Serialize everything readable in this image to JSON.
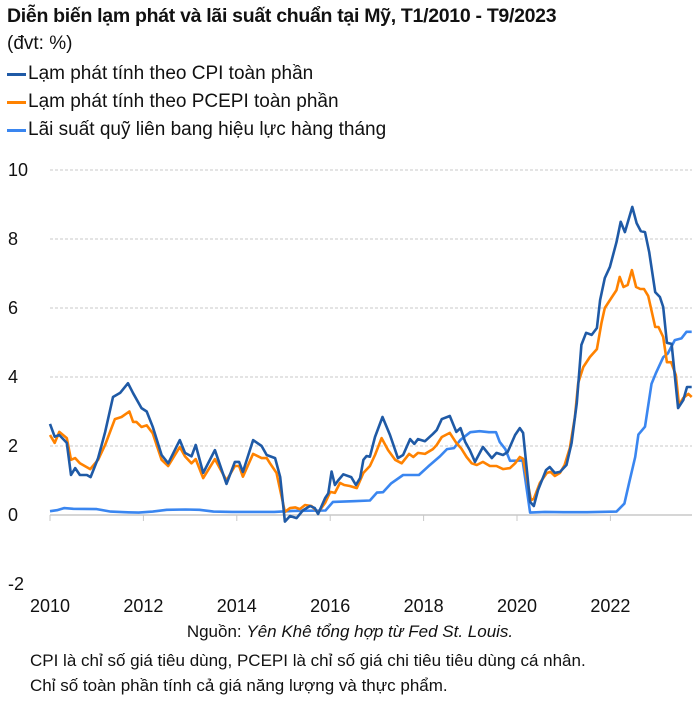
{
  "chart_data": {
    "type": "line",
    "title": "Diễn biến lạm phát và lãi suất chuẩn tại Mỹ, T1/2010 - T9/2023",
    "subtitle": "(đvt: %)",
    "xlabel": "",
    "ylabel": "",
    "xlim": [
      2010,
      2023.75
    ],
    "ylim": [
      -2,
      10
    ],
    "yticks": [
      "10",
      "8",
      "6",
      "4",
      "2",
      "0",
      "-2"
    ],
    "ytick_values": [
      10,
      8,
      6,
      4,
      2,
      0,
      -2
    ],
    "xticks": [
      "2010",
      "2012",
      "2014",
      "2016",
      "2018",
      "2020",
      "2022"
    ],
    "xtick_values": [
      2010,
      2012,
      2014,
      2016,
      2018,
      2020,
      2022
    ],
    "grid": "horizontal dashed",
    "legend_position": "top-left",
    "series": [
      {
        "name": "Lạm phát tính theo CPI toàn phần",
        "color": "#1f5aa6",
        "points": [
          [
            2010.0,
            2.64
          ],
          [
            2010.1,
            2.27
          ],
          [
            2010.2,
            2.32
          ],
          [
            2010.36,
            2.09
          ],
          [
            2010.45,
            1.16
          ],
          [
            2010.54,
            1.36
          ],
          [
            2010.64,
            1.16
          ],
          [
            2010.79,
            1.16
          ],
          [
            2010.87,
            1.1
          ],
          [
            2011.03,
            1.65
          ],
          [
            2011.18,
            2.4
          ],
          [
            2011.35,
            3.42
          ],
          [
            2011.5,
            3.54
          ],
          [
            2011.67,
            3.82
          ],
          [
            2011.78,
            3.53
          ],
          [
            2011.96,
            3.1
          ],
          [
            2012.07,
            3.0
          ],
          [
            2012.2,
            2.56
          ],
          [
            2012.39,
            1.74
          ],
          [
            2012.53,
            1.5
          ],
          [
            2012.78,
            2.17
          ],
          [
            2012.89,
            1.8
          ],
          [
            2013.03,
            1.7
          ],
          [
            2013.12,
            2.03
          ],
          [
            2013.28,
            1.22
          ],
          [
            2013.53,
            1.88
          ],
          [
            2013.78,
            0.9
          ],
          [
            2013.96,
            1.54
          ],
          [
            2014.05,
            1.54
          ],
          [
            2014.13,
            1.25
          ],
          [
            2014.35,
            2.17
          ],
          [
            2014.53,
            2.0
          ],
          [
            2014.64,
            1.74
          ],
          [
            2014.82,
            1.65
          ],
          [
            2014.93,
            1.1
          ],
          [
            2015.03,
            -0.19
          ],
          [
            2015.14,
            -0.03
          ],
          [
            2015.28,
            -0.09
          ],
          [
            2015.42,
            0.14
          ],
          [
            2015.57,
            0.26
          ],
          [
            2015.67,
            0.2
          ],
          [
            2015.74,
            0.03
          ],
          [
            2015.89,
            0.49
          ],
          [
            2015.96,
            0.63
          ],
          [
            2016.03,
            1.26
          ],
          [
            2016.1,
            0.87
          ],
          [
            2016.17,
            1.0
          ],
          [
            2016.28,
            1.18
          ],
          [
            2016.45,
            1.1
          ],
          [
            2016.55,
            0.87
          ],
          [
            2016.64,
            1.07
          ],
          [
            2016.71,
            1.6
          ],
          [
            2016.78,
            1.71
          ],
          [
            2016.85,
            1.69
          ],
          [
            2016.96,
            2.26
          ],
          [
            2017.12,
            2.84
          ],
          [
            2017.28,
            2.32
          ],
          [
            2017.45,
            1.65
          ],
          [
            2017.56,
            1.74
          ],
          [
            2017.71,
            2.2
          ],
          [
            2017.8,
            2.06
          ],
          [
            2017.88,
            2.2
          ],
          [
            2018.03,
            2.14
          ],
          [
            2018.2,
            2.35
          ],
          [
            2018.28,
            2.46
          ],
          [
            2018.39,
            2.78
          ],
          [
            2018.56,
            2.87
          ],
          [
            2018.7,
            2.41
          ],
          [
            2018.79,
            2.52
          ],
          [
            2018.89,
            2.12
          ],
          [
            2018.99,
            1.88
          ],
          [
            2019.1,
            1.54
          ],
          [
            2019.27,
            1.97
          ],
          [
            2019.46,
            1.65
          ],
          [
            2019.56,
            1.8
          ],
          [
            2019.7,
            1.74
          ],
          [
            2019.8,
            1.83
          ],
          [
            2019.96,
            2.32
          ],
          [
            2020.06,
            2.52
          ],
          [
            2020.13,
            2.38
          ],
          [
            2020.28,
            0.38
          ],
          [
            2020.36,
            0.26
          ],
          [
            2020.45,
            0.72
          ],
          [
            2020.62,
            1.3
          ],
          [
            2020.7,
            1.39
          ],
          [
            2020.81,
            1.22
          ],
          [
            2020.92,
            1.25
          ],
          [
            2021.06,
            1.45
          ],
          [
            2021.17,
            2.09
          ],
          [
            2021.28,
            3.25
          ],
          [
            2021.38,
            4.93
          ],
          [
            2021.48,
            5.28
          ],
          [
            2021.6,
            5.22
          ],
          [
            2021.71,
            5.42
          ],
          [
            2021.78,
            6.23
          ],
          [
            2021.88,
            6.87
          ],
          [
            2021.99,
            7.19
          ],
          [
            2022.13,
            7.91
          ],
          [
            2022.22,
            8.5
          ],
          [
            2022.31,
            8.2
          ],
          [
            2022.47,
            8.93
          ],
          [
            2022.56,
            8.46
          ],
          [
            2022.65,
            8.23
          ],
          [
            2022.74,
            8.2
          ],
          [
            2022.83,
            7.62
          ],
          [
            2022.96,
            6.46
          ],
          [
            2023.06,
            6.32
          ],
          [
            2023.13,
            6.03
          ],
          [
            2023.21,
            4.99
          ],
          [
            2023.31,
            4.96
          ],
          [
            2023.45,
            3.1
          ],
          [
            2023.56,
            3.33
          ],
          [
            2023.64,
            3.71
          ],
          [
            2023.74,
            3.71
          ]
        ]
      },
      {
        "name": "Lạm phát tính theo PCEPI toàn phần",
        "color": "#ff8200",
        "points": [
          [
            2010.0,
            2.32
          ],
          [
            2010.1,
            2.09
          ],
          [
            2010.2,
            2.41
          ],
          [
            2010.36,
            2.23
          ],
          [
            2010.45,
            1.6
          ],
          [
            2010.54,
            1.65
          ],
          [
            2010.64,
            1.5
          ],
          [
            2010.86,
            1.33
          ],
          [
            2011.03,
            1.6
          ],
          [
            2011.18,
            2.03
          ],
          [
            2011.39,
            2.78
          ],
          [
            2011.53,
            2.84
          ],
          [
            2011.7,
            3.0
          ],
          [
            2011.78,
            2.7
          ],
          [
            2011.85,
            2.7
          ],
          [
            2011.96,
            2.55
          ],
          [
            2012.07,
            2.6
          ],
          [
            2012.2,
            2.37
          ],
          [
            2012.39,
            1.6
          ],
          [
            2012.53,
            1.42
          ],
          [
            2012.78,
            1.97
          ],
          [
            2012.89,
            1.7
          ],
          [
            2013.03,
            1.5
          ],
          [
            2013.12,
            1.62
          ],
          [
            2013.28,
            1.07
          ],
          [
            2013.53,
            1.62
          ],
          [
            2013.78,
            1.0
          ],
          [
            2013.96,
            1.42
          ],
          [
            2014.05,
            1.42
          ],
          [
            2014.13,
            1.11
          ],
          [
            2014.35,
            1.77
          ],
          [
            2014.53,
            1.65
          ],
          [
            2014.64,
            1.65
          ],
          [
            2014.71,
            1.5
          ],
          [
            2014.85,
            1.22
          ],
          [
            2015.03,
            0.09
          ],
          [
            2015.14,
            0.2
          ],
          [
            2015.25,
            0.22
          ],
          [
            2015.35,
            0.17
          ],
          [
            2015.46,
            0.29
          ],
          [
            2015.6,
            0.26
          ],
          [
            2015.74,
            0.07
          ],
          [
            2015.89,
            0.35
          ],
          [
            2016.0,
            0.67
          ],
          [
            2016.1,
            0.64
          ],
          [
            2016.21,
            0.93
          ],
          [
            2016.3,
            0.87
          ],
          [
            2016.42,
            0.84
          ],
          [
            2016.57,
            0.78
          ],
          [
            2016.71,
            1.22
          ],
          [
            2016.85,
            1.42
          ],
          [
            2016.96,
            1.74
          ],
          [
            2017.1,
            2.23
          ],
          [
            2017.24,
            1.88
          ],
          [
            2017.39,
            1.6
          ],
          [
            2017.53,
            1.5
          ],
          [
            2017.69,
            1.77
          ],
          [
            2017.78,
            1.68
          ],
          [
            2017.88,
            1.8
          ],
          [
            2018.03,
            1.77
          ],
          [
            2018.2,
            1.91
          ],
          [
            2018.28,
            2.03
          ],
          [
            2018.39,
            2.26
          ],
          [
            2018.56,
            2.38
          ],
          [
            2018.7,
            2.09
          ],
          [
            2018.8,
            1.94
          ],
          [
            2018.92,
            1.68
          ],
          [
            2019.03,
            1.5
          ],
          [
            2019.14,
            1.45
          ],
          [
            2019.27,
            1.54
          ],
          [
            2019.42,
            1.42
          ],
          [
            2019.56,
            1.42
          ],
          [
            2019.7,
            1.33
          ],
          [
            2019.85,
            1.36
          ],
          [
            2019.96,
            1.5
          ],
          [
            2020.06,
            1.68
          ],
          [
            2020.13,
            1.63
          ],
          [
            2020.3,
            0.43
          ],
          [
            2020.36,
            0.47
          ],
          [
            2020.49,
            0.93
          ],
          [
            2020.64,
            1.22
          ],
          [
            2020.72,
            1.25
          ],
          [
            2020.81,
            1.13
          ],
          [
            2020.92,
            1.22
          ],
          [
            2021.02,
            1.45
          ],
          [
            2021.13,
            1.94
          ],
          [
            2021.24,
            2.84
          ],
          [
            2021.31,
            3.83
          ],
          [
            2021.42,
            4.29
          ],
          [
            2021.56,
            4.58
          ],
          [
            2021.71,
            4.81
          ],
          [
            2021.81,
            5.57
          ],
          [
            2021.88,
            6.0
          ],
          [
            2022.02,
            6.29
          ],
          [
            2022.13,
            6.52
          ],
          [
            2022.2,
            6.9
          ],
          [
            2022.28,
            6.61
          ],
          [
            2022.37,
            6.67
          ],
          [
            2022.46,
            7.1
          ],
          [
            2022.55,
            6.61
          ],
          [
            2022.64,
            6.55
          ],
          [
            2022.72,
            6.55
          ],
          [
            2022.81,
            6.35
          ],
          [
            2022.96,
            5.45
          ],
          [
            2023.03,
            5.45
          ],
          [
            2023.13,
            5.16
          ],
          [
            2023.21,
            4.43
          ],
          [
            2023.3,
            4.43
          ],
          [
            2023.4,
            4.06
          ],
          [
            2023.47,
            3.19
          ],
          [
            2023.56,
            3.39
          ],
          [
            2023.67,
            3.51
          ],
          [
            2023.74,
            3.42
          ]
        ]
      },
      {
        "name": "Lãi suất quỹ liên bang hiệu lực hàng tháng",
        "color": "#3a86f0",
        "points": [
          [
            2010.0,
            0.11
          ],
          [
            2010.15,
            0.14
          ],
          [
            2010.3,
            0.2
          ],
          [
            2010.5,
            0.18
          ],
          [
            2011.0,
            0.17
          ],
          [
            2011.3,
            0.1
          ],
          [
            2011.6,
            0.08
          ],
          [
            2011.9,
            0.07
          ],
          [
            2012.2,
            0.1
          ],
          [
            2012.5,
            0.15
          ],
          [
            2012.9,
            0.16
          ],
          [
            2013.2,
            0.15
          ],
          [
            2013.5,
            0.1
          ],
          [
            2013.9,
            0.09
          ],
          [
            2014.3,
            0.09
          ],
          [
            2014.8,
            0.09
          ],
          [
            2015.2,
            0.12
          ],
          [
            2015.9,
            0.13
          ],
          [
            2016.06,
            0.38
          ],
          [
            2016.5,
            0.4
          ],
          [
            2016.85,
            0.42
          ],
          [
            2017.0,
            0.65
          ],
          [
            2017.13,
            0.66
          ],
          [
            2017.3,
            0.91
          ],
          [
            2017.56,
            1.16
          ],
          [
            2017.9,
            1.16
          ],
          [
            2018.1,
            1.41
          ],
          [
            2018.35,
            1.7
          ],
          [
            2018.5,
            1.91
          ],
          [
            2018.65,
            1.94
          ],
          [
            2018.79,
            2.18
          ],
          [
            2019.0,
            2.4
          ],
          [
            2019.2,
            2.43
          ],
          [
            2019.4,
            2.4
          ],
          [
            2019.55,
            2.4
          ],
          [
            2019.63,
            2.12
          ],
          [
            2019.75,
            1.91
          ],
          [
            2019.85,
            1.57
          ],
          [
            2020.12,
            1.58
          ],
          [
            2020.28,
            0.07
          ],
          [
            2020.6,
            0.09
          ],
          [
            2021.0,
            0.08
          ],
          [
            2021.5,
            0.08
          ],
          [
            2022.13,
            0.1
          ],
          [
            2022.3,
            0.33
          ],
          [
            2022.4,
            0.93
          ],
          [
            2022.53,
            1.68
          ],
          [
            2022.6,
            2.33
          ],
          [
            2022.74,
            2.56
          ],
          [
            2022.88,
            3.8
          ],
          [
            2022.97,
            4.1
          ],
          [
            2023.13,
            4.57
          ],
          [
            2023.23,
            4.68
          ],
          [
            2023.38,
            5.07
          ],
          [
            2023.52,
            5.12
          ],
          [
            2023.63,
            5.31
          ],
          [
            2023.74,
            5.31
          ]
        ]
      }
    ]
  },
  "source": {
    "prefix": "Nguồn: ",
    "text": "Yên Khê tổng hợp từ Fed St. Louis."
  },
  "notes": [
    "CPI là chỉ số giá tiêu dùng, PCEPI là chỉ số giá chi tiêu tiêu dùng cá nhân.",
    "Chỉ số toàn phần tính cả giá năng lượng và thực phẩm."
  ]
}
